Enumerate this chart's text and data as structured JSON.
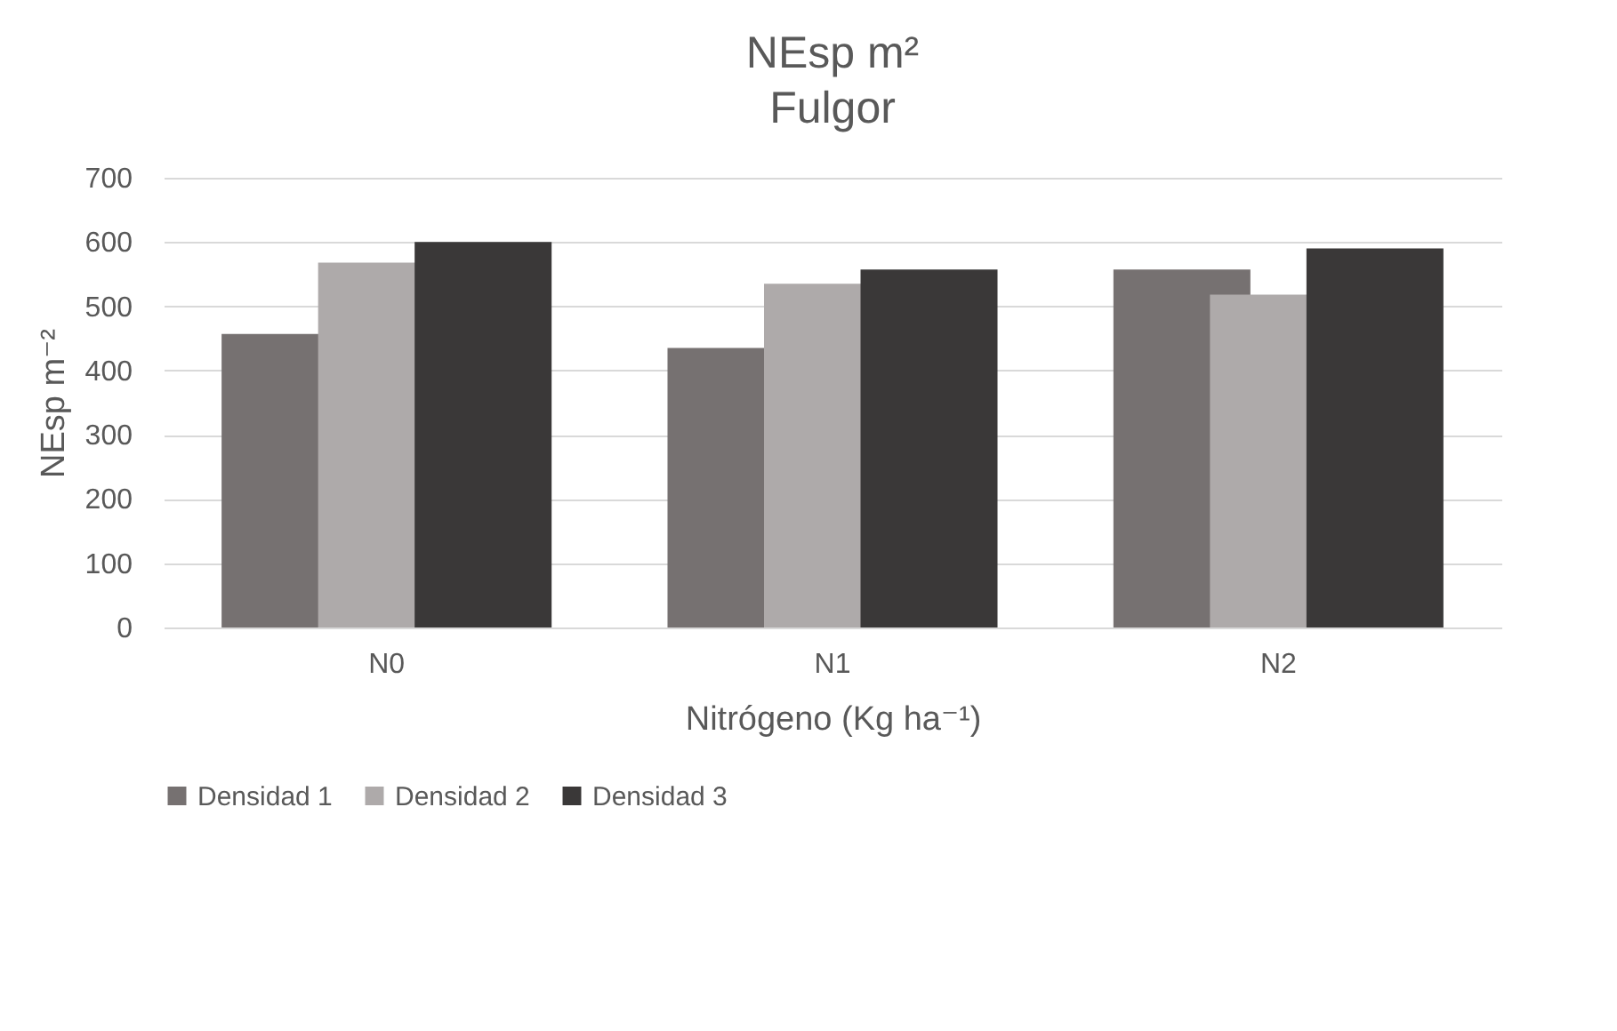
{
  "chart_data": {
    "type": "bar",
    "title": "NEsp m²",
    "subtitle": "Fulgor",
    "xlabel": "Nitrógeno (Kg ha⁻¹)",
    "ylabel": "NEsp m⁻²",
    "categories": [
      "N0",
      "N1",
      "N2"
    ],
    "series": [
      {
        "name": "Densidad 1",
        "color": "#767171",
        "values": [
          457,
          435,
          557
        ]
      },
      {
        "name": "Densidad 2",
        "color": "#aeaaaa",
        "values": [
          568,
          535,
          518
        ]
      },
      {
        "name": "Densidad 3",
        "color": "#3a3838",
        "values": [
          600,
          557,
          590
        ]
      }
    ],
    "ylim": [
      0,
      700
    ],
    "yticks": [
      0,
      100,
      200,
      300,
      400,
      500,
      600,
      700
    ],
    "grid": "y",
    "legend": "bottom"
  }
}
